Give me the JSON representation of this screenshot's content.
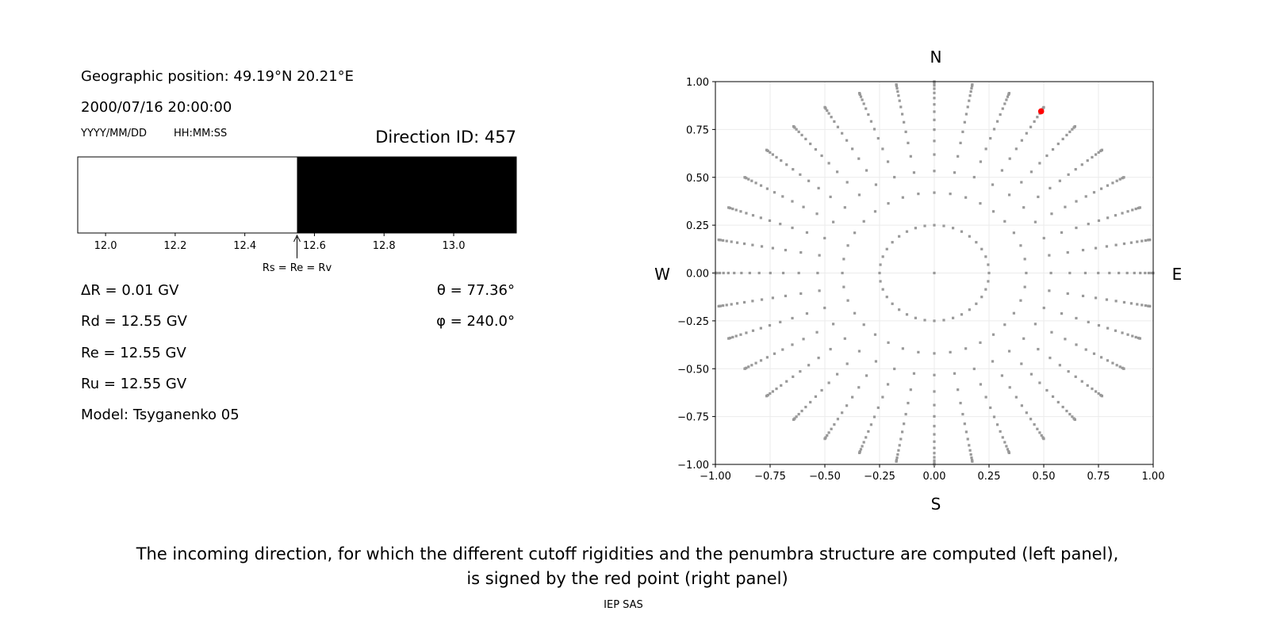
{
  "left_panel": {
    "geo_position": "Geographic position: 49.19°N 20.21°E",
    "datetime": "2000/07/16 20:00:00",
    "date_format": "YYYY/MM/DD",
    "time_format": "HH:MM:SS",
    "direction_id": "Direction ID: 457",
    "delta_r": "ΔR = 0.01 GV",
    "rd": "Rd = 12.55 GV",
    "re": "Re = 12.55 GV",
    "ru": "Ru = 12.55 GV",
    "model": "Model: Tsyganenko 05",
    "theta": "θ = 77.36°",
    "phi": "φ = 240.0°"
  },
  "caption": {
    "line1": "The incoming direction, for which the different cutoff rigidities and the penumbra structure are computed (left panel),",
    "line2": "is signed by the red point (right panel)",
    "credit": "IEP SAS"
  },
  "chart_data": [
    {
      "type": "bar",
      "description_kind": "penumbra",
      "xlim": [
        11.92,
        13.18
      ],
      "xticks": [
        "12.0",
        "12.2",
        "12.4",
        "12.6",
        "12.8",
        "13.0"
      ],
      "segments": [
        {
          "from": 11.92,
          "to": 12.55,
          "color": "#ffffff",
          "state": "forbidden"
        },
        {
          "from": 12.55,
          "to": 13.18,
          "color": "#000000",
          "state": "allowed"
        }
      ],
      "annotation": {
        "x": 12.55,
        "text": "Rs = Re = Rv"
      }
    },
    {
      "type": "scatter",
      "xlim": [
        -1,
        1
      ],
      "ylim": [
        -1,
        1
      ],
      "xticks": [
        "−1.00",
        "−0.75",
        "−0.50",
        "−0.25",
        "0.00",
        "0.25",
        "0.50",
        "0.75",
        "1.00"
      ],
      "yticks": [
        "1.00",
        "0.75",
        "0.50",
        "0.25",
        "0.00",
        "−0.25",
        "−0.50",
        "−0.75",
        "−1.00"
      ],
      "grid": true,
      "compass": {
        "north": "N",
        "south": "S",
        "west": "W",
        "east": "E"
      },
      "point_color": "#999999",
      "highlight_color": "#ff0000",
      "directions": {
        "center": [
          0,
          0
        ],
        "inner_ring": {
          "r": 0.25,
          "count": 36
        },
        "spoke_azimuths_step_deg": 10,
        "spoke_radii": [
          0.42,
          0.533,
          0.619,
          0.69,
          0.749,
          0.8,
          0.843,
          0.881,
          0.914,
          0.941,
          0.963,
          0.98,
          0.992,
          0.998,
          1.0
        ]
      },
      "highlight": {
        "x": 0.488,
        "y": 0.845
      }
    }
  ]
}
